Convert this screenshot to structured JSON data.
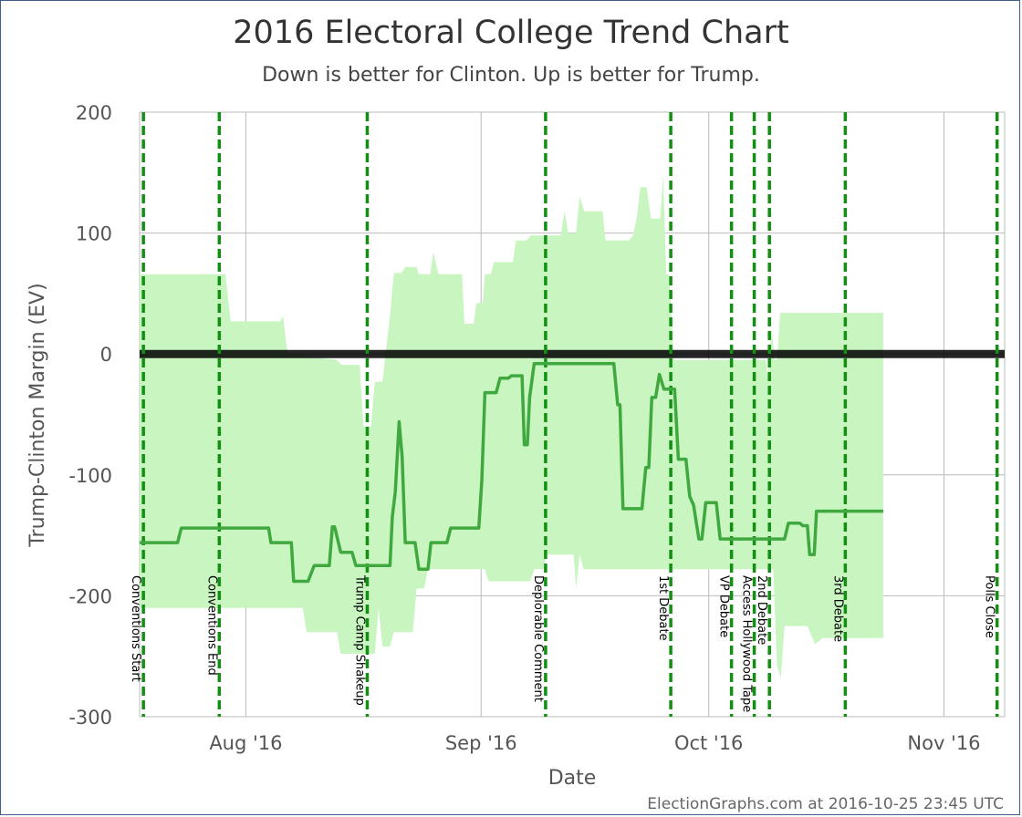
{
  "chart_data": {
    "type": "area",
    "title": "2016 Electoral College Trend Chart",
    "subtitle": "Down is better for Clinton. Up is better for Trump.",
    "xlabel": "Date",
    "ylabel": "Trump-Clinton Margin (EV)",
    "ylim": [
      -300,
      200
    ],
    "yticks": [
      200,
      100,
      0,
      -100,
      -200,
      -300
    ],
    "xlim": [
      "2016-07-18",
      "2016-11-09"
    ],
    "xticks": [
      {
        "date": "2016-08-01",
        "label": "Aug '16"
      },
      {
        "date": "2016-09-01",
        "label": "Sep '16"
      },
      {
        "date": "2016-10-01",
        "label": "Oct '16"
      },
      {
        "date": "2016-11-01",
        "label": "Nov '16"
      }
    ],
    "grid": true,
    "zero_line": 0,
    "colors": {
      "band": "#c8f5c0",
      "line": "#3fa83f",
      "event": "#138f13",
      "zero": "#000000",
      "grid": "#bbbbbb",
      "frame": "#3b5f8a"
    },
    "events": [
      {
        "date": "2016-07-18.5",
        "label": "Conventions Start"
      },
      {
        "date": "2016-07-28.5",
        "label": "Conventions End"
      },
      {
        "date": "2016-08-17",
        "label": "Trump Camp Shakeup"
      },
      {
        "date": "2016-09-09.5",
        "label": "Deplorable Comment"
      },
      {
        "date": "2016-09-26",
        "label": "1st Debate"
      },
      {
        "date": "2016-10-04",
        "label": "VP Debate"
      },
      {
        "date": "2016-10-07",
        "label": "Access Hollywood Tape"
      },
      {
        "date": "2016-10-09",
        "label": "2nd Debate"
      },
      {
        "date": "2016-10-19",
        "label": "3rd Debate"
      },
      {
        "date": "2016-11-08",
        "label": "Polls Close"
      }
    ],
    "series": [
      {
        "type": "line",
        "values": [
          {
            "x": "2016-07-18",
            "y": -156
          },
          {
            "x": "2016-07-23",
            "y": -156
          },
          {
            "x": "2016-07-23.5",
            "y": -144
          },
          {
            "x": "2016-08-04",
            "y": -144
          },
          {
            "x": "2016-08-04.3",
            "y": -156
          },
          {
            "x": "2016-08-07",
            "y": -156
          },
          {
            "x": "2016-08-07.3",
            "y": -188
          },
          {
            "x": "2016-08-09.2",
            "y": -188
          },
          {
            "x": "2016-08-10",
            "y": -175
          },
          {
            "x": "2016-08-12",
            "y": -175
          },
          {
            "x": "2016-08-12.4",
            "y": -143
          },
          {
            "x": "2016-08-12.7",
            "y": -143
          },
          {
            "x": "2016-08-13.5",
            "y": -164
          },
          {
            "x": "2016-08-15",
            "y": -164
          },
          {
            "x": "2016-08-15.5",
            "y": -175
          },
          {
            "x": "2016-08-20",
            "y": -175
          },
          {
            "x": "2016-08-20.3",
            "y": -135
          },
          {
            "x": "2016-08-20.7",
            "y": -114
          },
          {
            "x": "2016-08-21.2",
            "y": -56
          },
          {
            "x": "2016-08-21.6",
            "y": -85
          },
          {
            "x": "2016-08-22",
            "y": -156
          },
          {
            "x": "2016-08-23.3",
            "y": -156
          },
          {
            "x": "2016-08-23.8",
            "y": -178
          },
          {
            "x": "2016-08-25",
            "y": -178
          },
          {
            "x": "2016-08-25.4",
            "y": -156
          },
          {
            "x": "2016-08-27.5",
            "y": -156
          },
          {
            "x": "2016-08-28",
            "y": -144
          },
          {
            "x": "2016-08-31.7",
            "y": -144
          },
          {
            "x": "2016-09-01.1",
            "y": -105
          },
          {
            "x": "2016-09-01.5",
            "y": -32
          },
          {
            "x": "2016-09-03",
            "y": -32
          },
          {
            "x": "2016-09-03.5",
            "y": -20
          },
          {
            "x": "2016-09-04.6",
            "y": -20
          },
          {
            "x": "2016-09-05",
            "y": -18
          },
          {
            "x": "2016-09-06.4",
            "y": -18
          },
          {
            "x": "2016-09-06.7",
            "y": -75
          },
          {
            "x": "2016-09-07.1",
            "y": -75
          },
          {
            "x": "2016-09-07.4",
            "y": -36
          },
          {
            "x": "2016-09-08",
            "y": -8
          },
          {
            "x": "2016-09-18.5",
            "y": -8
          },
          {
            "x": "2016-09-19",
            "y": -42
          },
          {
            "x": "2016-09-19.3",
            "y": -42
          },
          {
            "x": "2016-09-19.7",
            "y": -128
          },
          {
            "x": "2016-09-22.2",
            "y": -128
          },
          {
            "x": "2016-09-22.7",
            "y": -94
          },
          {
            "x": "2016-09-23.1",
            "y": -94
          },
          {
            "x": "2016-09-23.5",
            "y": -36
          },
          {
            "x": "2016-09-24",
            "y": -36
          },
          {
            "x": "2016-09-24.5",
            "y": -17
          },
          {
            "x": "2016-09-25.1",
            "y": -29
          },
          {
            "x": "2016-09-26.5",
            "y": -29
          },
          {
            "x": "2016-09-27",
            "y": -87
          },
          {
            "x": "2016-09-28",
            "y": -87
          },
          {
            "x": "2016-09-28.5",
            "y": -118
          },
          {
            "x": "2016-09-29",
            "y": -125
          },
          {
            "x": "2016-09-29.7",
            "y": -153
          },
          {
            "x": "2016-09-30.1",
            "y": -153
          },
          {
            "x": "2016-09-30.6",
            "y": -123
          },
          {
            "x": "2016-10-02",
            "y": -123
          },
          {
            "x": "2016-10-02.5",
            "y": -153
          },
          {
            "x": "2016-10-11",
            "y": -153
          },
          {
            "x": "2016-10-11.5",
            "y": -140
          },
          {
            "x": "2016-10-13",
            "y": -140
          },
          {
            "x": "2016-10-13.4",
            "y": -142
          },
          {
            "x": "2016-10-14",
            "y": -142
          },
          {
            "x": "2016-10-14.3",
            "y": -166
          },
          {
            "x": "2016-10-14.9",
            "y": -166
          },
          {
            "x": "2016-10-15.2",
            "y": -130
          },
          {
            "x": "2016-10-24",
            "y": -130
          }
        ]
      },
      {
        "type": "band-upper",
        "values": [
          {
            "x": "2016-07-18",
            "y": 66
          },
          {
            "x": "2016-07-29.3",
            "y": 66
          },
          {
            "x": "2016-07-30",
            "y": 27
          },
          {
            "x": "2016-08-05.5",
            "y": 27
          },
          {
            "x": "2016-08-05.9",
            "y": 31
          },
          {
            "x": "2016-08-06.5",
            "y": 0
          },
          {
            "x": "2016-08-13",
            "y": -5
          },
          {
            "x": "2016-08-13.6",
            "y": -9
          },
          {
            "x": "2016-08-16",
            "y": -9
          },
          {
            "x": "2016-08-16.5",
            "y": -60
          },
          {
            "x": "2016-08-17.5",
            "y": -60
          },
          {
            "x": "2016-08-18",
            "y": -23
          },
          {
            "x": "2016-08-19",
            "y": -23
          },
          {
            "x": "2016-08-20",
            "y": 32
          },
          {
            "x": "2016-08-20.5",
            "y": 67
          },
          {
            "x": "2016-08-21.5",
            "y": 67
          },
          {
            "x": "2016-08-22",
            "y": 72
          },
          {
            "x": "2016-08-23.5",
            "y": 72
          },
          {
            "x": "2016-08-23.8",
            "y": 66
          },
          {
            "x": "2016-08-25.3",
            "y": 66
          },
          {
            "x": "2016-08-25.7",
            "y": 84
          },
          {
            "x": "2016-08-26.4",
            "y": 66
          },
          {
            "x": "2016-08-29.5",
            "y": 66
          },
          {
            "x": "2016-08-29.8",
            "y": 25
          },
          {
            "x": "2016-08-31",
            "y": 25
          },
          {
            "x": "2016-08-31.4",
            "y": 42
          },
          {
            "x": "2016-09-01.2",
            "y": 42
          },
          {
            "x": "2016-09-01.5",
            "y": 66
          },
          {
            "x": "2016-09-02.3",
            "y": 66
          },
          {
            "x": "2016-09-02.7",
            "y": 76
          },
          {
            "x": "2016-09-05.2",
            "y": 76
          },
          {
            "x": "2016-09-05.6",
            "y": 94
          },
          {
            "x": "2016-09-07",
            "y": 94
          },
          {
            "x": "2016-09-07.5",
            "y": 98
          },
          {
            "x": "2016-09-11.5",
            "y": 98
          },
          {
            "x": "2016-09-12",
            "y": 118
          },
          {
            "x": "2016-09-12.5",
            "y": 100
          },
          {
            "x": "2016-09-13.5",
            "y": 100
          },
          {
            "x": "2016-09-14",
            "y": 130
          },
          {
            "x": "2016-09-14.6",
            "y": 118
          },
          {
            "x": "2016-09-17",
            "y": 118
          },
          {
            "x": "2016-09-17.4",
            "y": 94
          },
          {
            "x": "2016-09-20.5",
            "y": 94
          },
          {
            "x": "2016-09-21",
            "y": 98
          },
          {
            "x": "2016-09-21.5",
            "y": 112
          },
          {
            "x": "2016-09-22",
            "y": 138
          },
          {
            "x": "2016-09-22.8",
            "y": 138
          },
          {
            "x": "2016-09-23.4",
            "y": 112
          },
          {
            "x": "2016-09-24.6",
            "y": 112
          },
          {
            "x": "2016-09-25",
            "y": 148
          },
          {
            "x": "2016-09-25.4",
            "y": 66
          },
          {
            "x": "2016-09-25.8",
            "y": 66
          },
          {
            "x": "2016-09-26.4",
            "y": -5
          },
          {
            "x": "2016-10-08.5",
            "y": -5
          },
          {
            "x": "2016-10-08.8",
            "y": -18
          },
          {
            "x": "2016-10-09.3",
            "y": 20
          },
          {
            "x": "2016-10-09.7",
            "y": -5
          },
          {
            "x": "2016-10-10",
            "y": -5
          },
          {
            "x": "2016-10-10.4",
            "y": 34
          },
          {
            "x": "2016-10-24",
            "y": 34
          }
        ]
      },
      {
        "type": "band-lower",
        "values": [
          {
            "x": "2016-07-18",
            "y": -210
          },
          {
            "x": "2016-08-08.5",
            "y": -210
          },
          {
            "x": "2016-08-09",
            "y": -230
          },
          {
            "x": "2016-08-13",
            "y": -230
          },
          {
            "x": "2016-08-13.5",
            "y": -248
          },
          {
            "x": "2016-08-18",
            "y": -248
          },
          {
            "x": "2016-08-18.5",
            "y": -210
          },
          {
            "x": "2016-08-19",
            "y": -242
          },
          {
            "x": "2016-08-20",
            "y": -242
          },
          {
            "x": "2016-08-20.5",
            "y": -230
          },
          {
            "x": "2016-08-23",
            "y": -230
          },
          {
            "x": "2016-08-23.5",
            "y": -194
          },
          {
            "x": "2016-08-24.5",
            "y": -194
          },
          {
            "x": "2016-08-25",
            "y": -178
          },
          {
            "x": "2016-09-01.5",
            "y": -178
          },
          {
            "x": "2016-09-02",
            "y": -188
          },
          {
            "x": "2016-09-07.5",
            "y": -188
          },
          {
            "x": "2016-09-08",
            "y": -178
          },
          {
            "x": "2016-09-09.2",
            "y": -178
          },
          {
            "x": "2016-09-09.6",
            "y": -166
          },
          {
            "x": "2016-09-13.2",
            "y": -166
          },
          {
            "x": "2016-09-13.5",
            "y": -194
          },
          {
            "x": "2016-09-14",
            "y": -166
          },
          {
            "x": "2016-09-14.5",
            "y": -178
          },
          {
            "x": "2016-10-09.5",
            "y": -178
          },
          {
            "x": "2016-10-10",
            "y": -258
          },
          {
            "x": "2016-10-10.5",
            "y": -268
          },
          {
            "x": "2016-10-11",
            "y": -225
          },
          {
            "x": "2016-10-14",
            "y": -225
          },
          {
            "x": "2016-10-15",
            "y": -240
          },
          {
            "x": "2016-10-16",
            "y": -235
          },
          {
            "x": "2016-10-24",
            "y": -235
          }
        ]
      }
    ]
  },
  "footer": {
    "credit": "ElectionGraphs.com at 2016-10-25 23:45 UTC"
  }
}
